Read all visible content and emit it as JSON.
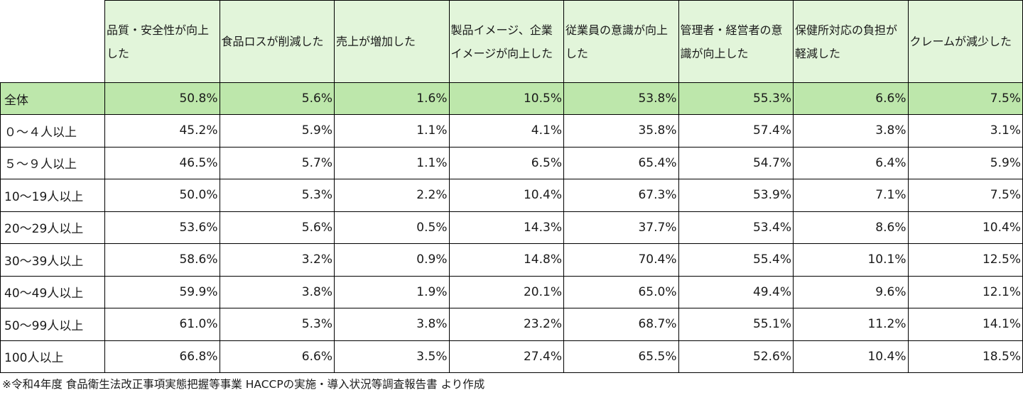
{
  "table": {
    "headers": [
      "品質・安全性が向上した",
      "食品ロスが削減した",
      "売上が増加した",
      "製品イメージ、企業イメージが向上した",
      "従業員の意識が向上した",
      "管理者・経営者の意識が向上した",
      "保健所対応の負担が軽減した",
      "クレームが減少した"
    ],
    "rows": [
      {
        "label": "全体",
        "values": [
          "50.8%",
          "5.6%",
          "1.6%",
          "10.5%",
          "53.8%",
          "55.3%",
          "6.6%",
          "7.5%"
        ]
      },
      {
        "label": "０～４人以上",
        "values": [
          "45.2%",
          "5.9%",
          "1.1%",
          "4.1%",
          "35.8%",
          "57.4%",
          "3.8%",
          "3.1%"
        ]
      },
      {
        "label": "５～９人以上",
        "values": [
          "46.5%",
          "5.7%",
          "1.1%",
          "6.5%",
          "65.4%",
          "54.7%",
          "6.4%",
          "5.9%"
        ]
      },
      {
        "label": "10～19人以上",
        "values": [
          "50.0%",
          "5.3%",
          "2.2%",
          "10.4%",
          "67.3%",
          "53.9%",
          "7.1%",
          "7.5%"
        ]
      },
      {
        "label": "20～29人以上",
        "values": [
          "53.6%",
          "5.6%",
          "0.5%",
          "14.3%",
          "37.7%",
          "53.4%",
          "8.6%",
          "10.4%"
        ]
      },
      {
        "label": "30～39人以上",
        "values": [
          "58.6%",
          "3.2%",
          "0.9%",
          "14.8%",
          "70.4%",
          "55.4%",
          "10.1%",
          "12.5%"
        ]
      },
      {
        "label": "40～49人以上",
        "values": [
          "59.9%",
          "3.8%",
          "1.9%",
          "20.1%",
          "65.0%",
          "49.4%",
          "9.6%",
          "12.1%"
        ]
      },
      {
        "label": "50～99人以上",
        "values": [
          "61.0%",
          "5.3%",
          "3.8%",
          "23.2%",
          "68.7%",
          "55.1%",
          "11.2%",
          "14.1%"
        ]
      },
      {
        "label": "100人以上",
        "values": [
          "66.8%",
          "6.6%",
          "3.5%",
          "27.4%",
          "65.5%",
          "52.6%",
          "10.4%",
          "18.5%"
        ]
      }
    ]
  },
  "note": "※令和4年度 食品衛生法改正事項実態把握等事業 HACCPの実施・導入状況等調査報告書 より作成",
  "colors": {
    "header_bg": "#e2f5da",
    "total_row_bg": "#bde7ab",
    "border": "#000000"
  }
}
